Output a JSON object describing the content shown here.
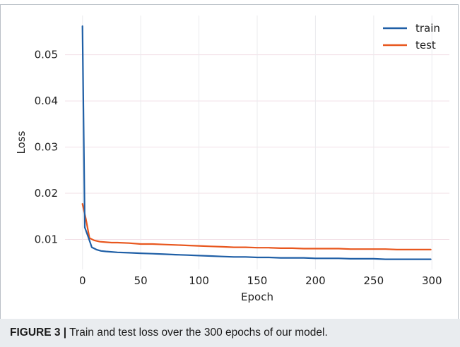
{
  "caption": {
    "label": "FIGURE 3 |",
    "text": " Train and test loss over the 300 epochs of our model."
  },
  "chart_data": {
    "type": "line",
    "xlabel": "Epoch",
    "ylabel": "Loss",
    "xlim": [
      -15,
      315
    ],
    "ylim": [
      0.0035,
      0.0585
    ],
    "xticks": [
      0,
      50,
      100,
      150,
      200,
      250,
      300
    ],
    "yticks": [
      0.01,
      0.02,
      0.03,
      0.04,
      0.05
    ],
    "grid": true,
    "legend_position": "top-right",
    "series": [
      {
        "name": "train",
        "color": "#1f5fa6",
        "x": [
          0,
          2,
          5,
          8,
          12,
          16,
          20,
          30,
          40,
          50,
          60,
          70,
          80,
          90,
          100,
          110,
          120,
          130,
          140,
          150,
          160,
          170,
          180,
          190,
          200,
          210,
          220,
          230,
          240,
          250,
          260,
          270,
          280,
          290,
          299
        ],
        "y": [
          0.0562,
          0.0126,
          0.0105,
          0.0083,
          0.0078,
          0.0075,
          0.0074,
          0.0072,
          0.0071,
          0.007,
          0.0069,
          0.0068,
          0.0067,
          0.0066,
          0.0065,
          0.0064,
          0.0063,
          0.0062,
          0.0062,
          0.0061,
          0.0061,
          0.006,
          0.006,
          0.006,
          0.0059,
          0.0059,
          0.0059,
          0.0058,
          0.0058,
          0.0058,
          0.0057,
          0.0057,
          0.0057,
          0.0057,
          0.0057
        ]
      },
      {
        "name": "test",
        "color": "#e8571e",
        "x": [
          0,
          3,
          6,
          10,
          15,
          20,
          25,
          30,
          40,
          50,
          60,
          70,
          80,
          90,
          100,
          110,
          120,
          130,
          140,
          150,
          160,
          170,
          180,
          190,
          200,
          210,
          220,
          230,
          240,
          250,
          260,
          270,
          280,
          290,
          299
        ],
        "y": [
          0.0177,
          0.0143,
          0.0103,
          0.0098,
          0.0095,
          0.0094,
          0.0093,
          0.0093,
          0.0092,
          0.009,
          0.009,
          0.0089,
          0.0088,
          0.0087,
          0.0086,
          0.0085,
          0.0084,
          0.0083,
          0.0083,
          0.0082,
          0.0082,
          0.0081,
          0.0081,
          0.008,
          0.008,
          0.008,
          0.008,
          0.0079,
          0.0079,
          0.0079,
          0.0079,
          0.0078,
          0.0078,
          0.0078,
          0.0078
        ]
      }
    ]
  }
}
